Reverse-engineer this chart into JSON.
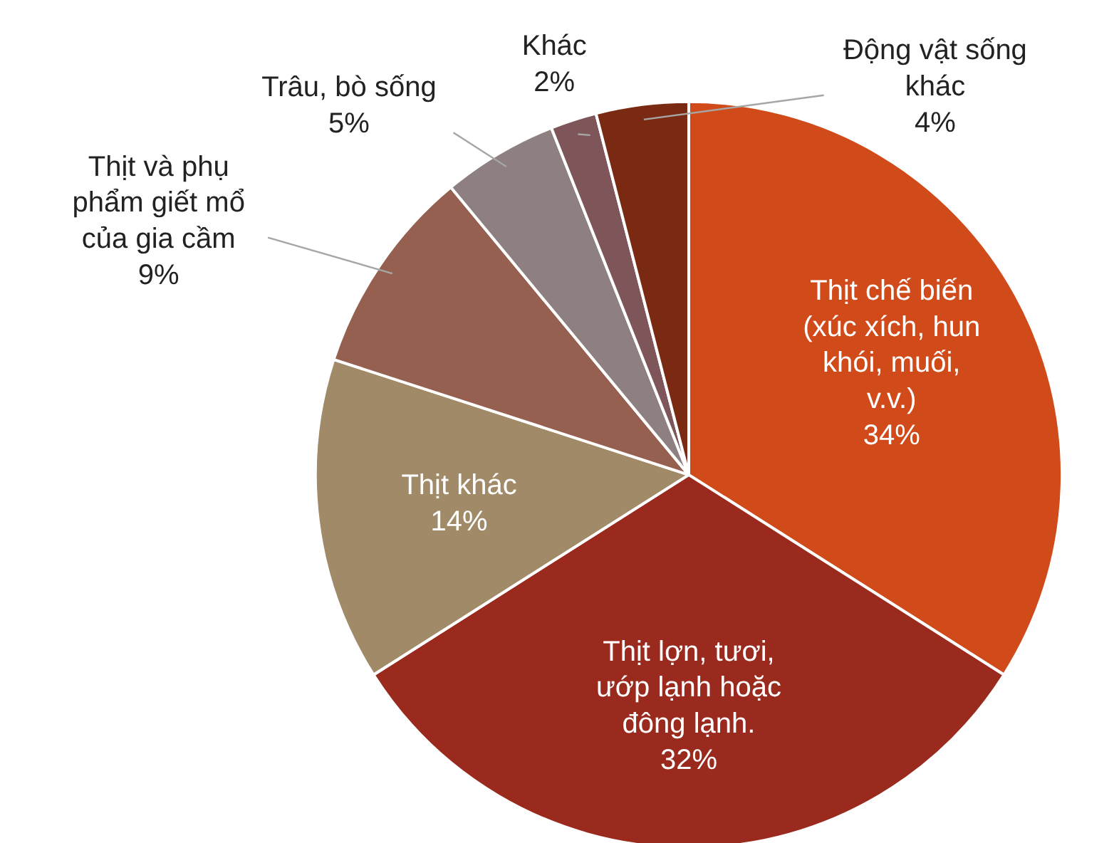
{
  "chart_data": {
    "type": "pie",
    "categories": [
      "Thịt chế biến (xúc xích, hun khói, muối, v.v.)",
      "Thịt lợn, tươi, ướp lạnh hoặc đông lạnh.",
      "Thịt khác",
      "Thịt và phụ phẩm giết mổ của gia cầm",
      "Trâu, bò sống",
      "Khác",
      "Động vật sống khác"
    ],
    "values": [
      34,
      32,
      14,
      9,
      5,
      2,
      4
    ],
    "value_labels": [
      "34%",
      "32%",
      "14%",
      "9%",
      "5%",
      "2%",
      "4%"
    ],
    "colors": [
      "#d04a1a",
      "#9a2a1e",
      "#a08a68",
      "#956050",
      "#8e8080",
      "#7e5558",
      "#7a2a12"
    ]
  }
}
